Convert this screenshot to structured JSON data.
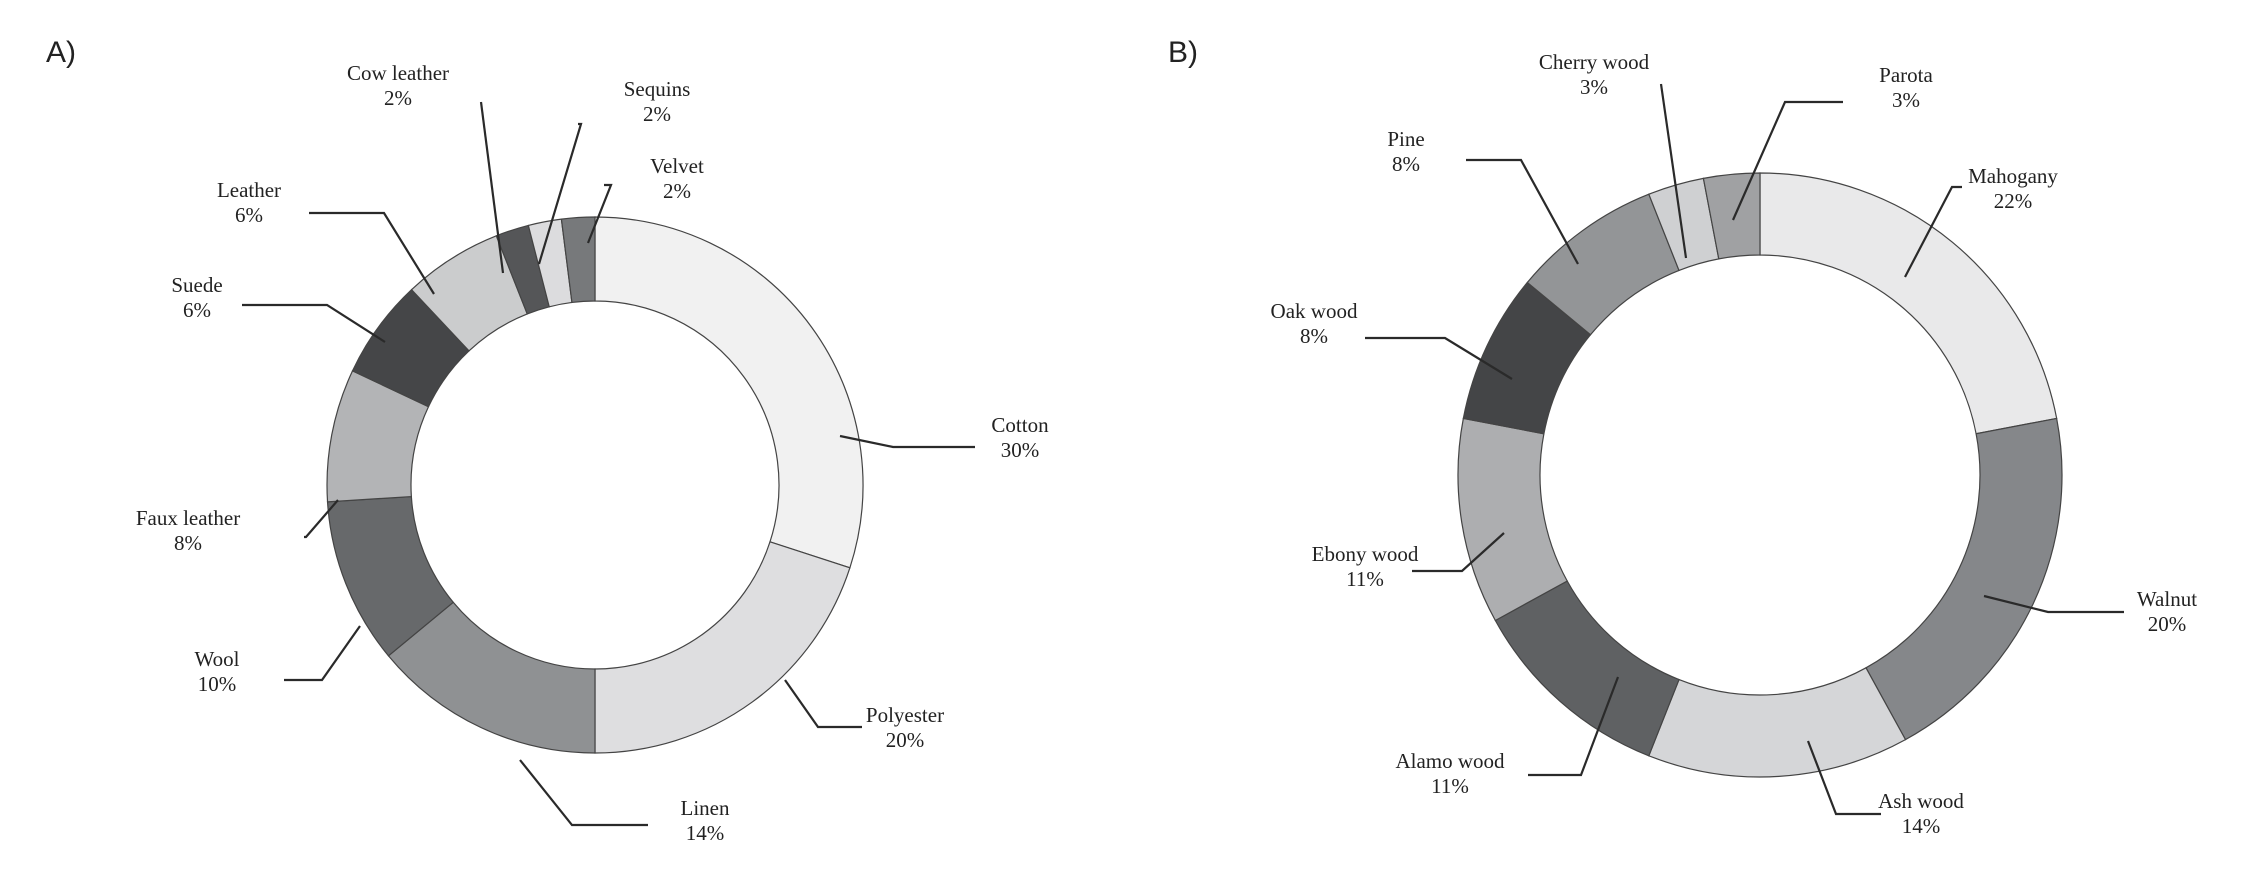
{
  "chart_data": [
    {
      "type": "pie",
      "panel_label": "A)",
      "start": "top, clockwise",
      "slices": [
        {
          "label": "Cotton",
          "value": 30,
          "pct_text": "30%",
          "color": "#f1f1f1"
        },
        {
          "label": "Polyester",
          "value": 20,
          "pct_text": "20%",
          "color": "#dedee0"
        },
        {
          "label": "Linen",
          "value": 14,
          "pct_text": "14%",
          "color": "#8f9193"
        },
        {
          "label": "Wool",
          "value": 10,
          "pct_text": "10%",
          "color": "#67696b"
        },
        {
          "label": "Faux leather",
          "value": 8,
          "pct_text": "8%",
          "color": "#b3b4b6"
        },
        {
          "label": "Suede",
          "value": 6,
          "pct_text": "6%",
          "color": "#454648"
        },
        {
          "label": "Leather",
          "value": 6,
          "pct_text": "6%",
          "color": "#cbcccd"
        },
        {
          "label": "Cow leather",
          "value": 2,
          "pct_text": "2%",
          "color": "#555658"
        },
        {
          "label": "Sequins",
          "value": 2,
          "pct_text": "2%",
          "color": "#dcdcde"
        },
        {
          "label": "Velvet",
          "value": 2,
          "pct_text": "2%",
          "color": "#77797b"
        }
      ]
    },
    {
      "type": "pie",
      "panel_label": "B)",
      "start": "top, clockwise",
      "slices": [
        {
          "label": "Mahogany",
          "value": 22,
          "pct_text": "22%",
          "color": "#e9e9ea"
        },
        {
          "label": "Walnut",
          "value": 20,
          "pct_text": "20%",
          "color": "#85878a"
        },
        {
          "label": "Ash wood",
          "value": 14,
          "pct_text": "14%",
          "color": "#d5d6d8"
        },
        {
          "label": "Alamo wood",
          "value": 11,
          "pct_text": "11%",
          "color": "#5f6163"
        },
        {
          "label": "Ebony wood",
          "value": 11,
          "pct_text": "11%",
          "color": "#adaeb0"
        },
        {
          "label": "Oak wood",
          "value": 8,
          "pct_text": "8%",
          "color": "#444547"
        },
        {
          "label": "Pine",
          "value": 8,
          "pct_text": "8%",
          "color": "#939597"
        },
        {
          "label": "Cherry wood",
          "value": 3,
          "pct_text": "3%",
          "color": "#cfd0d2"
        },
        {
          "label": "Parota",
          "value": 3,
          "pct_text": "3%",
          "color": "#a0a1a3"
        }
      ]
    }
  ]
}
